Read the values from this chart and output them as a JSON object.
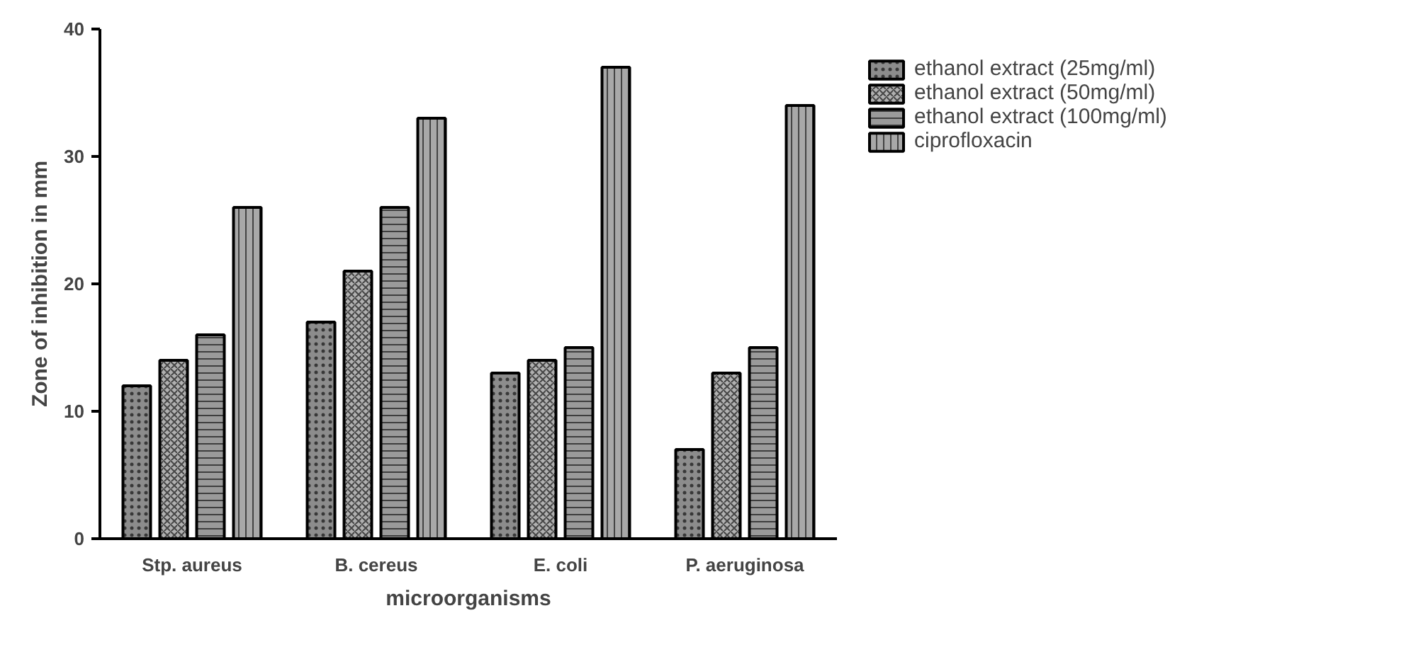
{
  "chart_data": {
    "type": "bar",
    "xlabel": "microorganisms",
    "ylabel": "Zone of inhibition in mm",
    "categories": [
      "Stp. aureus",
      "B. cereus",
      "E. coli",
      "P. aeruginosa"
    ],
    "series": [
      {
        "name": "ethanol extract (25mg/ml)",
        "color": "#8c8c8c",
        "values": [
          12,
          17,
          13,
          7
        ]
      },
      {
        "name": "ethanol extract (50mg/ml)",
        "color": "#b0b0b0",
        "values": [
          14,
          21,
          14,
          13
        ]
      },
      {
        "name": "ethanol extract (100mg/ml)",
        "color": "#9a9a9a",
        "values": [
          16,
          26,
          15,
          15
        ]
      },
      {
        "name": "ciprofloxacin",
        "color": "#a8a8a8",
        "values": [
          26,
          33,
          37,
          34
        ]
      }
    ],
    "ylim": [
      0,
      40
    ],
    "yticks": [
      0,
      10,
      20,
      30,
      40
    ],
    "grid": false,
    "legend": "top right"
  }
}
